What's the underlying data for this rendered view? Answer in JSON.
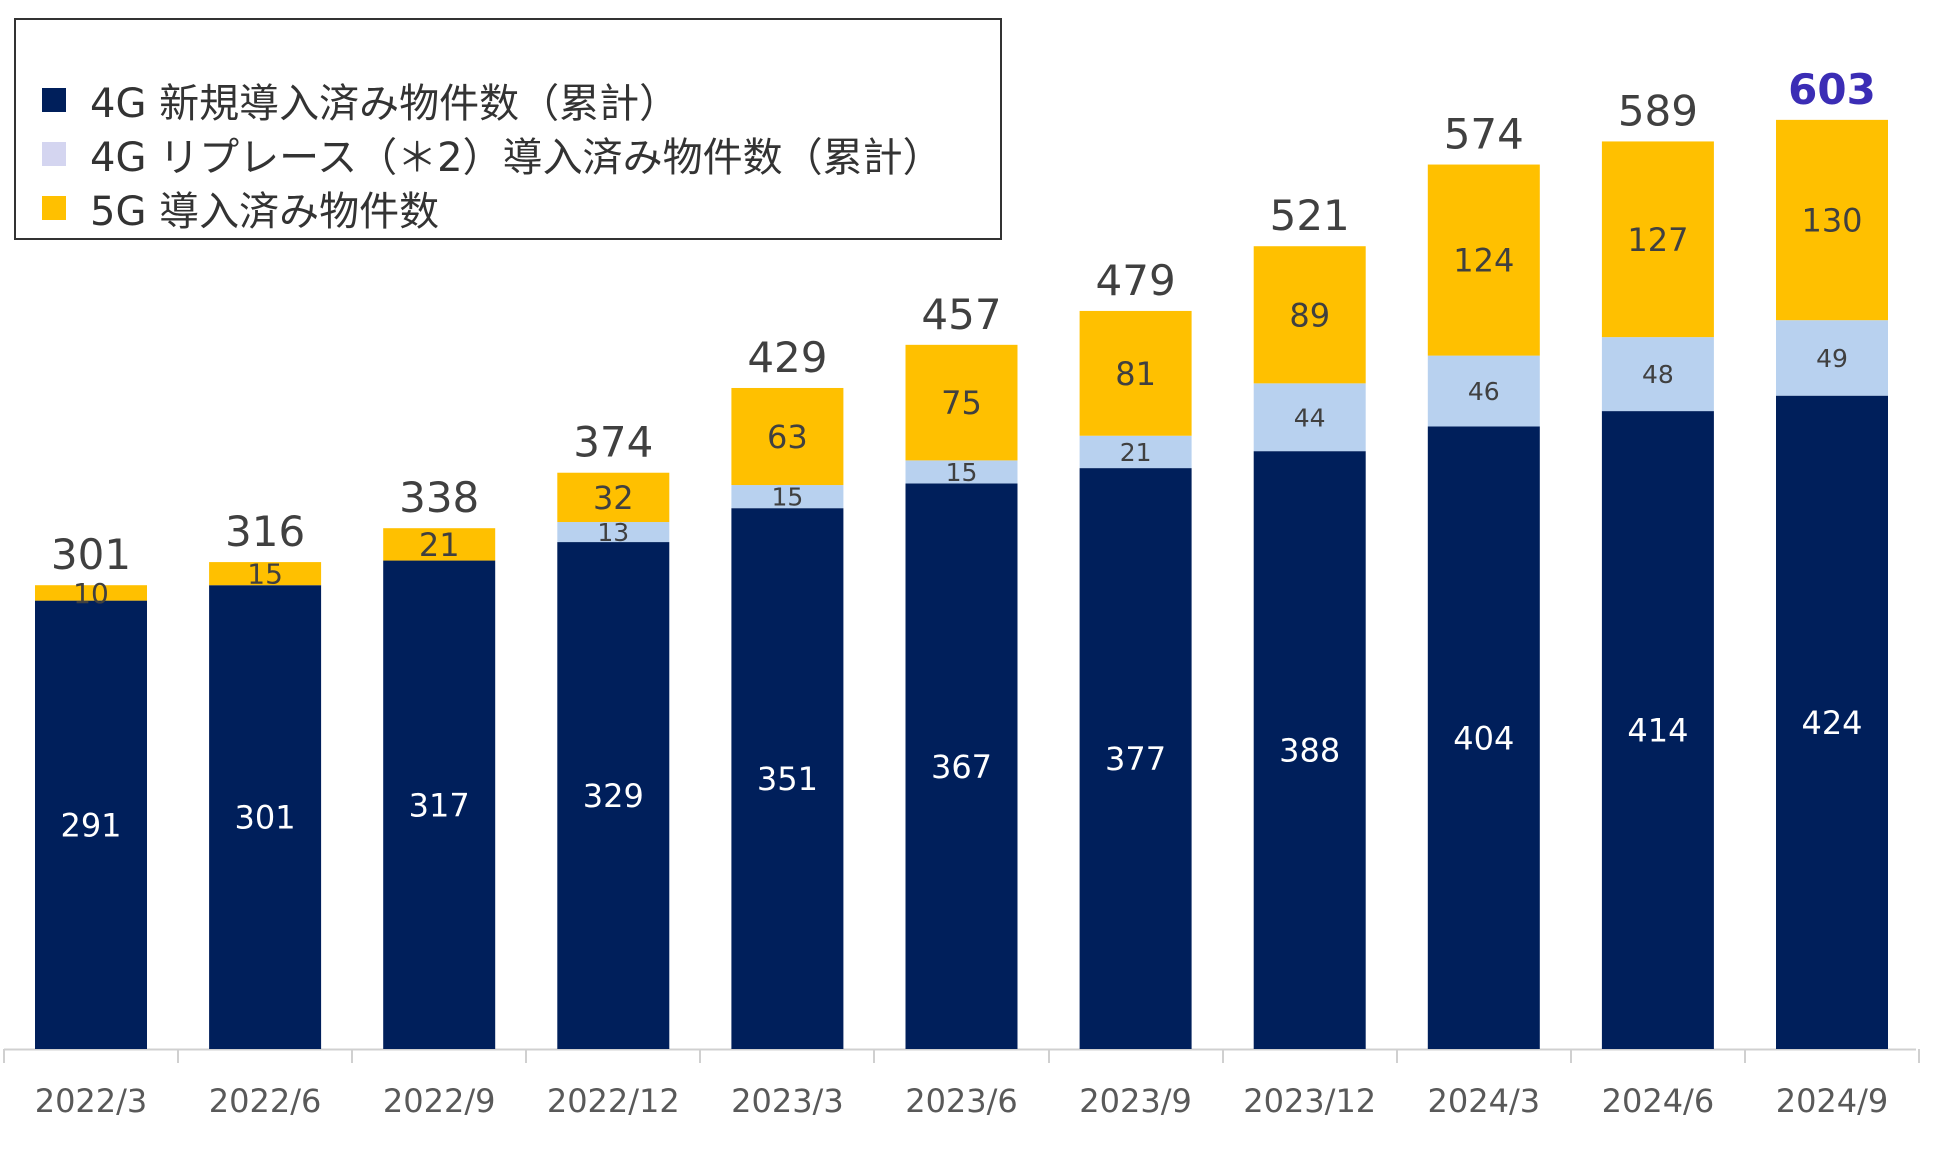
{
  "colors": {
    "new4g": "#001f5b",
    "replace4g": "#b8d1ef",
    "g5": "#ffc000",
    "legend_replace_swatch": "#d4d5f0",
    "total_text": "#404040",
    "highlight_total": "#3b2db5",
    "axis": "#d0d0d0",
    "tick_text": "#595959"
  },
  "legend": {
    "items": [
      {
        "label": "4G 新規導入済み物件数（累計）",
        "color": "#001f5b"
      },
      {
        "label": "4G リプレース（＊2）導入済み物件数（累計）",
        "color": "#d4d5f0"
      },
      {
        "label": "5G 導入済み物件数",
        "color": "#ffc000"
      }
    ]
  },
  "chart_data": {
    "type": "bar",
    "stacked": true,
    "categories": [
      "2022/3",
      "2022/6",
      "2022/9",
      "2022/12",
      "2023/3",
      "2023/6",
      "2023/9",
      "2023/12",
      "2024/3",
      "2024/6",
      "2024/9"
    ],
    "series": [
      {
        "name": "4G 新規導入済み物件数（累計）",
        "values": [
          291,
          301,
          317,
          329,
          351,
          367,
          377,
          388,
          404,
          414,
          424
        ]
      },
      {
        "name": "4G リプレース（＊2）導入済み物件数（累計）",
        "values": [
          0,
          0,
          0,
          13,
          15,
          15,
          21,
          44,
          46,
          48,
          49
        ]
      },
      {
        "name": "5G 導入済み物件数",
        "values": [
          10,
          15,
          21,
          32,
          63,
          75,
          81,
          89,
          124,
          127,
          130
        ]
      }
    ],
    "totals": [
      "301",
      "316",
      "338",
      "374",
      "429",
      "457",
      "479",
      "521",
      "574",
      "589",
      "603"
    ],
    "highlight_index": 10,
    "ylim": [
      0,
      612
    ],
    "title": "",
    "xlabel": "",
    "ylabel": ""
  }
}
